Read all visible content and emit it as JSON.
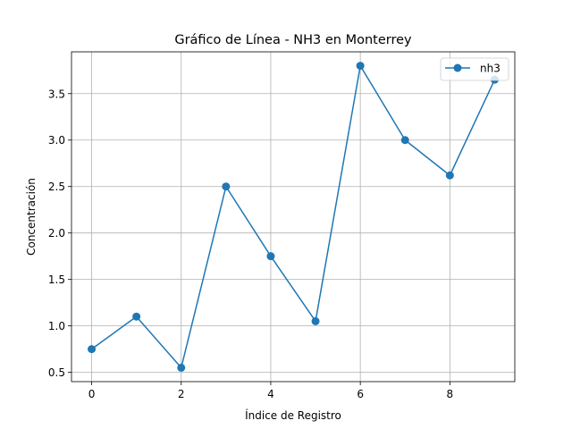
{
  "chart_data": {
    "type": "line",
    "title": "Gráfico de Línea - NH3 en Monterrey",
    "xlabel": "Índice de Registro",
    "ylabel": "Concentración",
    "x": [
      0,
      1,
      2,
      3,
      4,
      5,
      6,
      7,
      8,
      9
    ],
    "series": [
      {
        "name": "nh3",
        "values": [
          0.75,
          1.1,
          0.55,
          2.5,
          1.75,
          1.05,
          3.8,
          3.0,
          2.62,
          3.65
        ],
        "color": "#1f77b4",
        "marker": "circle"
      }
    ],
    "xlim": [
      -0.45,
      9.45
    ],
    "ylim": [
      0.4,
      3.95
    ],
    "xticks": [
      0,
      2,
      4,
      6,
      8
    ],
    "xtick_labels": [
      "0",
      "2",
      "4",
      "6",
      "8"
    ],
    "yticks": [
      0.5,
      1.0,
      1.5,
      2.0,
      2.5,
      3.0,
      3.5
    ],
    "ytick_labels": [
      "0.5",
      "1.0",
      "1.5",
      "2.0",
      "2.5",
      "3.0",
      "3.5"
    ],
    "grid": true,
    "legend_position": "top-right"
  }
}
